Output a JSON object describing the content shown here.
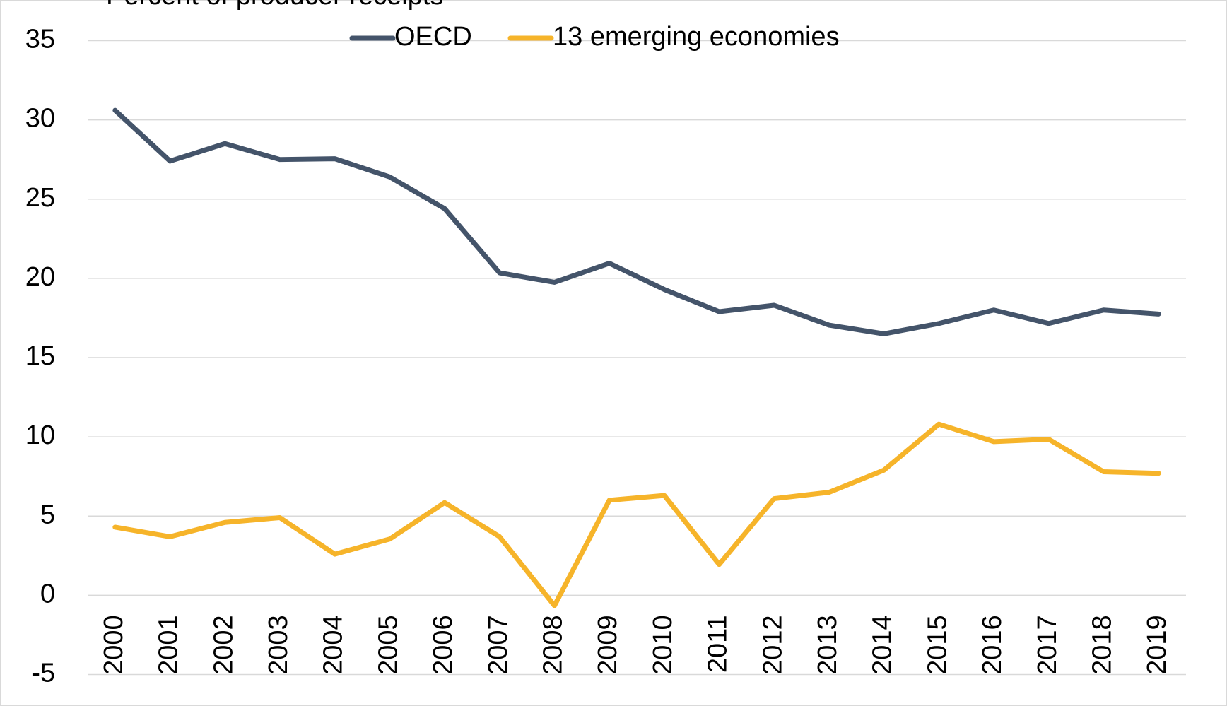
{
  "chart_data": {
    "type": "line",
    "y_label": "Percent of producer receipts",
    "categories": [
      "2000",
      "2001",
      "2002",
      "2003",
      "2004",
      "2005",
      "2006",
      "2007",
      "2008",
      "2009",
      "2010",
      "2011",
      "2012",
      "2013",
      "2014",
      "2015",
      "2016",
      "2017",
      "2018",
      "2019"
    ],
    "series": [
      {
        "name": "OECD",
        "color": "#44546a",
        "values": [
          30.6,
          27.4,
          28.5,
          27.5,
          27.55,
          26.4,
          24.4,
          20.35,
          19.75,
          20.95,
          19.3,
          17.9,
          18.3,
          17.05,
          16.5,
          17.15,
          18.0,
          17.15,
          18.0,
          17.75
        ]
      },
      {
        "name": "13 emerging economies",
        "color": "#f6b42a",
        "values": [
          4.3,
          3.7,
          4.6,
          4.9,
          2.6,
          3.55,
          5.85,
          3.7,
          -0.65,
          6.0,
          6.3,
          1.95,
          6.1,
          6.5,
          7.9,
          10.8,
          9.7,
          9.85,
          7.8,
          7.7
        ]
      }
    ],
    "ylim": [
      -5,
      35
    ],
    "yticks": [
      -5,
      0,
      5,
      10,
      15,
      20,
      25,
      30,
      35
    ],
    "grid": true,
    "legend": "top"
  }
}
